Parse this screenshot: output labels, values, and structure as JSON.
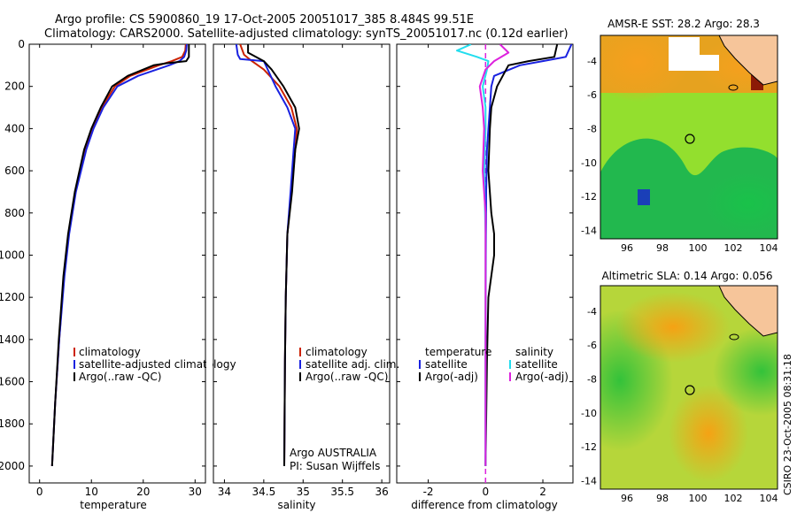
{
  "header": {
    "line1": "Argo profile: CS 5900860_19 17-Oct-2005 20051017_385 8.484S 99.51E",
    "line2": "Climatology: CARS2000. Satellite-adjusted climatology: synTS_20051017.nc (0.12d earlier)"
  },
  "colors": {
    "climatology": "#cc2200",
    "satellite": "#1a22e0",
    "argo": "#000000",
    "satellite_salinity": "#22ddee",
    "argo_salinity_adj": "#dd22dd"
  },
  "chart_data": [
    {
      "type": "line",
      "title": "",
      "xlabel": "temperature",
      "ylabel": "",
      "xlim": [
        -2,
        32
      ],
      "ylim": [
        2080,
        0
      ],
      "xticks": [
        "0",
        "10",
        "20",
        "30"
      ],
      "yticks": [
        "0",
        "200",
        "400",
        "600",
        "800",
        "1000",
        "1200",
        "1400",
        "1600",
        "1800",
        "2000"
      ],
      "legend": [
        "climatology",
        "satellite-adjusted climatology",
        "Argo(..raw -QC)"
      ],
      "series": [
        {
          "name": "climatology",
          "depth": [
            0,
            30,
            60,
            80,
            100,
            150,
            200,
            300,
            400,
            500,
            700,
            900,
            1100,
            1400,
            1700,
            2000
          ],
          "values": [
            28.2,
            28.1,
            27.5,
            25.5,
            23.0,
            17.5,
            14.5,
            12.0,
            10.2,
            8.8,
            6.9,
            5.6,
            4.7,
            3.8,
            3.0,
            2.4
          ]
        },
        {
          "name": "satellite-adjusted climatology",
          "depth": [
            0,
            30,
            60,
            80,
            100,
            150,
            200,
            300,
            400,
            500,
            700,
            900,
            1100,
            1400,
            1700,
            2000
          ],
          "values": [
            28.4,
            28.3,
            27.9,
            27.0,
            25.0,
            19.0,
            15.0,
            12.3,
            10.4,
            9.0,
            7.0,
            5.7,
            4.8,
            3.8,
            3.0,
            2.4
          ]
        },
        {
          "name": "Argo(..raw -QC)",
          "depth": [
            0,
            60,
            80,
            90,
            100,
            150,
            200,
            300,
            400,
            500,
            700,
            900,
            1100,
            1400,
            1700,
            2000
          ],
          "values": [
            28.8,
            28.8,
            28.3,
            24.5,
            22.0,
            17.0,
            14.0,
            11.8,
            10.0,
            8.6,
            6.8,
            5.5,
            4.6,
            3.7,
            3.0,
            2.4
          ]
        }
      ]
    },
    {
      "type": "line",
      "title": "",
      "xlabel": "salinity",
      "ylabel": "",
      "xlim": [
        33.86,
        36.1
      ],
      "ylim": [
        2080,
        0
      ],
      "xticks": [
        "34",
        "34.5",
        "35",
        "35.5",
        "36"
      ],
      "legend": [
        "climatology",
        "satellite adj. clim.",
        "Argo(..raw -QC)"
      ],
      "annotations": [
        "Argo AUSTRALIA",
        "PI: Susan Wijffels"
      ],
      "series": [
        {
          "name": "climatology",
          "depth": [
            0,
            50,
            80,
            120,
            200,
            300,
            400,
            500,
            700,
            900,
            1200,
            1500,
            2000
          ],
          "values": [
            34.2,
            34.25,
            34.35,
            34.5,
            34.7,
            34.85,
            34.92,
            34.9,
            34.85,
            34.8,
            34.78,
            34.77,
            34.76
          ]
        },
        {
          "name": "satellite adj. clim.",
          "depth": [
            0,
            50,
            70,
            80,
            120,
            200,
            300,
            400,
            500,
            700,
            900,
            1200,
            1500,
            2000
          ],
          "values": [
            34.15,
            34.17,
            34.2,
            34.5,
            34.55,
            34.65,
            34.8,
            34.9,
            34.88,
            34.84,
            34.8,
            34.78,
            34.77,
            34.76
          ]
        },
        {
          "name": "Argo(..raw -QC)",
          "depth": [
            0,
            40,
            80,
            120,
            200,
            300,
            400,
            500,
            700,
            900,
            1200,
            1500,
            2000
          ],
          "values": [
            34.3,
            34.3,
            34.5,
            34.6,
            34.75,
            34.9,
            34.95,
            34.9,
            34.86,
            34.8,
            34.78,
            34.77,
            34.76
          ]
        }
      ]
    },
    {
      "type": "line",
      "title": "",
      "xlabel": "difference from climatology",
      "ylabel": "",
      "xlim": [
        -3.1,
        3.05
      ],
      "ylim": [
        2080,
        0
      ],
      "xticks": [
        "-2",
        "0",
        "2"
      ],
      "legend_temperature_header": "temperature",
      "legend_salinity_header": "salinity",
      "legend": [
        "satellite",
        "Argo(-adj)",
        "satellite",
        "Argo(-adj)"
      ],
      "series": [
        {
          "name": "temperature satellite",
          "depth": [
            0,
            60,
            80,
            100,
            150,
            200,
            300,
            400,
            500,
            700,
            1000,
            1500,
            2000
          ],
          "values": [
            3.0,
            2.8,
            2.0,
            1.2,
            0.3,
            0.2,
            0.15,
            0.1,
            0.05,
            0.02,
            0.01,
            0.0,
            0.0
          ]
        },
        {
          "name": "temperature Argo(-adj)",
          "depth": [
            0,
            60,
            80,
            100,
            150,
            200,
            300,
            400,
            600,
            800,
            900,
            1000,
            1200,
            1500,
            2000
          ],
          "values": [
            2.5,
            2.4,
            1.5,
            0.8,
            0.6,
            0.4,
            0.2,
            0.15,
            0.1,
            0.2,
            0.3,
            0.3,
            0.1,
            0.05,
            0.0
          ]
        },
        {
          "name": "salinity satellite",
          "depth": [
            0,
            30,
            60,
            80,
            120,
            200,
            300,
            400,
            600,
            900,
            1500,
            2000
          ],
          "values": [
            -0.5,
            -1.0,
            -0.3,
            0.1,
            0.05,
            -0.1,
            0.0,
            0.0,
            -0.05,
            0.0,
            0.0,
            0.0
          ]
        },
        {
          "name": "salinity Argo(-adj)",
          "depth": [
            0,
            40,
            80,
            120,
            200,
            300,
            400,
            600,
            800,
            1000,
            1500,
            2000
          ],
          "values": [
            0.5,
            0.8,
            0.3,
            0.0,
            -0.2,
            -0.1,
            -0.05,
            -0.1,
            0.0,
            0.0,
            0.0,
            0.0
          ]
        }
      ]
    },
    {
      "type": "heatmap",
      "title": "AMSR-E SST: 28.2 Argo: 28.3",
      "xlim": [
        94.5,
        104.5
      ],
      "ylim": [
        -14.5,
        -2.5
      ],
      "xticks": [
        "96",
        "98",
        "100",
        "102",
        "104"
      ],
      "yticks": [
        "-4",
        "-6",
        "-8",
        "-10",
        "-12",
        "-14"
      ],
      "argo_position": {
        "lon": 99.51,
        "lat": -8.484
      }
    },
    {
      "type": "heatmap",
      "title": "Altimetric SLA: 0.14 Argo: 0.056",
      "xlim": [
        94.5,
        104.5
      ],
      "ylim": [
        -14.5,
        -2.5
      ],
      "xticks": [
        "96",
        "98",
        "100",
        "102",
        "104"
      ],
      "yticks": [
        "-4",
        "-6",
        "-8",
        "-10",
        "-12",
        "-14"
      ],
      "argo_position": {
        "lon": 99.51,
        "lat": -8.484
      }
    }
  ],
  "footer": {
    "stamp": "CSIRO 23-Oct-2005 08:31:18"
  }
}
